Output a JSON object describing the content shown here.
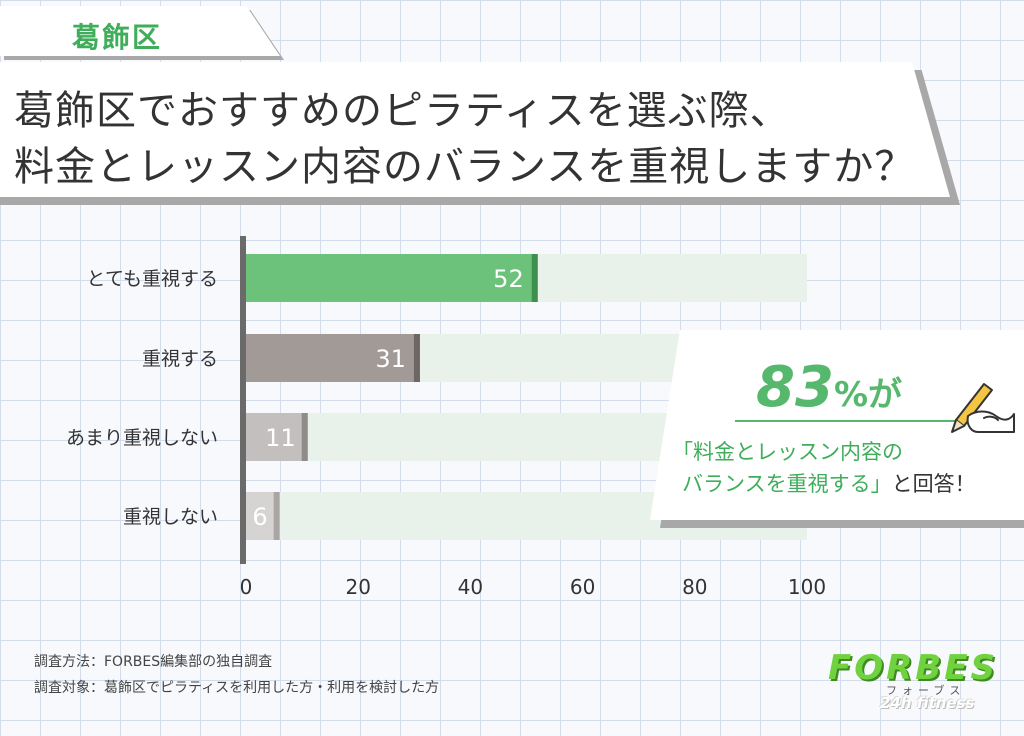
{
  "tag": {
    "label": "葛飾区"
  },
  "title": {
    "line1": "葛飾区でおすすめのピラティスを選ぶ際、",
    "line2": "料金とレッスン内容のバランスを重視しますか？"
  },
  "chart_data": {
    "type": "bar",
    "orientation": "horizontal",
    "categories": [
      "とても重視する",
      "重視する",
      "あまり重視しない",
      "重視しない"
    ],
    "values": [
      52,
      31,
      11,
      6
    ],
    "xlim": [
      0,
      100
    ],
    "xticks": [
      "0",
      "20",
      "40",
      "60",
      "80",
      "100"
    ],
    "data_labels": [
      "52",
      "31",
      "11",
      "6"
    ],
    "grid": false,
    "colors": {
      "bar_fills": [
        "#6cc27a",
        "#a29a97",
        "#c2bfbe",
        "#d6d4d3"
      ],
      "bar_edges": [
        "#3f8f4f",
        "#6e6664",
        "#8f8b8a",
        "#a9a6a5"
      ],
      "track": "#e8f2ea",
      "axis": "#6a6a6a"
    }
  },
  "callout": {
    "number": "83",
    "unit": "%",
    "suffix": "が",
    "line1": "「料金とレッスン内容の",
    "line2_highlight": "バランスを重視する」",
    "line2_rest": "と回答！"
  },
  "notes": {
    "method": "調査方法：FORBES編集部の独自調査",
    "target": "調査対象：葛飾区でピラティスを利用した方・利用を検討した方"
  },
  "logo": {
    "main": "FORBES",
    "kana": "フォーブス",
    "sub": "24h fitness"
  }
}
